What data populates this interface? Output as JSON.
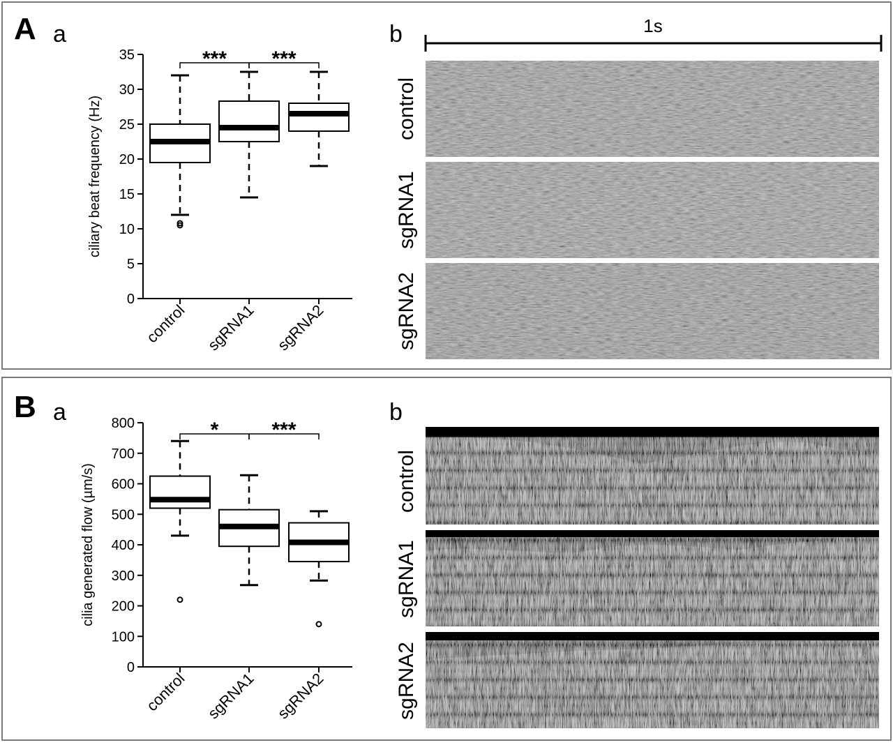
{
  "panels": [
    {
      "letter": "A",
      "plot_sub": "a",
      "image_sub": "b",
      "scale_label": "1s",
      "image_rows": [
        "control",
        "sgRNA1",
        "sgRNA2"
      ]
    },
    {
      "letter": "B",
      "plot_sub": "a",
      "image_sub": "b",
      "scale_label": "",
      "image_rows": [
        "control",
        "sgRNA1",
        "sgRNA2"
      ]
    }
  ],
  "chart_data": [
    {
      "type": "box",
      "ylabel": "ciliary beat frequency (Hz)",
      "ylim": [
        0,
        35
      ],
      "yticks": [
        "0",
        "5",
        "10",
        "15",
        "20",
        "25",
        "30",
        "35"
      ],
      "categories": [
        "control",
        "sgRNA1",
        "sgRNA2"
      ],
      "boxes": [
        {
          "whisker_low": 12,
          "q1": 19.5,
          "median": 22.5,
          "q3": 25,
          "whisker_high": 32,
          "outliers": [
            10.5,
            10.8
          ]
        },
        {
          "whisker_low": 14.5,
          "q1": 22.5,
          "median": 24.5,
          "q3": 28.3,
          "whisker_high": 32.5,
          "outliers": []
        },
        {
          "whisker_low": 19,
          "q1": 24,
          "median": 26.5,
          "q3": 28,
          "whisker_high": 32.5,
          "outliers": []
        }
      ],
      "significance": [
        {
          "from": 0,
          "to": 1,
          "label": "***"
        },
        {
          "from": 1,
          "to": 2,
          "label": "***"
        }
      ]
    },
    {
      "type": "box",
      "ylabel": "cilia generated flow (µm/s)",
      "ylim": [
        0,
        800
      ],
      "yticks": [
        "0",
        "100",
        "200",
        "300",
        "400",
        "500",
        "600",
        "700",
        "800"
      ],
      "categories": [
        "control",
        "sgRNA1",
        "sgRNA2"
      ],
      "boxes": [
        {
          "whisker_low": 430,
          "q1": 520,
          "median": 548,
          "q3": 625,
          "whisker_high": 740,
          "outliers": [
            220
          ]
        },
        {
          "whisker_low": 268,
          "q1": 395,
          "median": 460,
          "q3": 515,
          "whisker_high": 628,
          "outliers": []
        },
        {
          "whisker_low": 283,
          "q1": 345,
          "median": 408,
          "q3": 472,
          "whisker_high": 510,
          "outliers": [
            140
          ]
        }
      ],
      "significance": [
        {
          "from": 0,
          "to": 1,
          "label": "*"
        },
        {
          "from": 1,
          "to": 2,
          "label": "***"
        }
      ]
    }
  ]
}
